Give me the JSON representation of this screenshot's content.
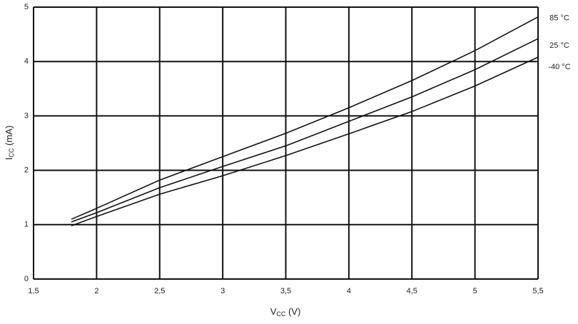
{
  "chart_data": {
    "type": "line",
    "x_label": {
      "main": "V",
      "sub": "CC",
      "unit": " (V)"
    },
    "y_label": {
      "main": "I",
      "sub": "CC",
      "unit": " (mA)"
    },
    "x": [
      1.8,
      2.0,
      2.5,
      3.0,
      3.5,
      4.0,
      4.5,
      5.0,
      5.5
    ],
    "series": [
      {
        "name": "85 °C",
        "color": "#111111",
        "values": [
          1.1,
          1.3,
          1.82,
          2.25,
          2.68,
          3.15,
          3.65,
          4.2,
          4.82
        ]
      },
      {
        "name": "25 °C",
        "color": "#111111",
        "values": [
          1.05,
          1.22,
          1.68,
          2.07,
          2.45,
          2.9,
          3.35,
          3.85,
          4.42
        ]
      },
      {
        "name": "-40 °C",
        "color": "#111111",
        "values": [
          0.98,
          1.15,
          1.56,
          1.9,
          2.27,
          2.67,
          3.08,
          3.55,
          4.08
        ]
      }
    ],
    "xlim": [
      1.5,
      5.5
    ],
    "xticks": [
      {
        "value": 1.5,
        "label": "1,5"
      },
      2,
      {
        "value": 2.5,
        "label": "2,5"
      },
      3,
      {
        "value": 3.5,
        "label": "3,5"
      },
      4,
      {
        "value": 4.5,
        "label": "4,5"
      },
      5,
      {
        "value": 5.5,
        "label": "5,5"
      }
    ],
    "ylim": [
      0,
      5
    ],
    "yticks": [
      0,
      1,
      2,
      3,
      4,
      5
    ],
    "grid": true,
    "grid_color": "#111111"
  }
}
